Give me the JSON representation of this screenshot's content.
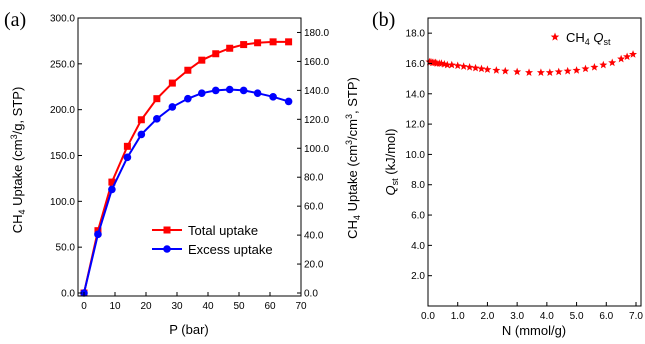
{
  "colors": {
    "red": "#ff0000",
    "blue": "#0000ff",
    "axis": "#000000"
  },
  "chart_data": [
    {
      "panel": "(a)",
      "type": "line",
      "xlabel": "P (bar)",
      "ylabel_left": "CH4 Uptake (cm3/g, STP)",
      "ylabel_right": "CH4 Uptake (cm3/cm3, STP)",
      "xlim": [
        0,
        70
      ],
      "ylim_left": [
        0,
        300
      ],
      "ylim_right": [
        0,
        190
      ],
      "xticks": [
        "0",
        "10",
        "20",
        "30",
        "40",
        "50",
        "60",
        "70"
      ],
      "yticks_left": [
        "0.0",
        "50.0",
        "100.0",
        "150.0",
        "200.0",
        "250.0",
        "300.0"
      ],
      "yticks_right": [
        "0.0",
        "20.0",
        "40.0",
        "60.0",
        "80.0",
        "100.0",
        "120.0",
        "140.0",
        "160.0",
        "180.0"
      ],
      "legend_position": "lower-right",
      "series": [
        {
          "name": "Total uptake",
          "color": "#ff0000",
          "marker": "square",
          "x": [
            0,
            4.5,
            9,
            14,
            18.5,
            23.5,
            28.5,
            33.5,
            38,
            42.5,
            47,
            51.5,
            56,
            61,
            66
          ],
          "y": [
            0,
            68,
            121,
            160,
            189,
            212,
            229,
            243,
            254,
            261,
            267,
            271,
            273,
            274,
            274
          ]
        },
        {
          "name": "Excess uptake",
          "color": "#0000ff",
          "marker": "circle",
          "x": [
            0,
            4.5,
            9,
            14,
            18.5,
            23.5,
            28.5,
            33.5,
            38,
            42.5,
            47,
            51.5,
            56,
            61,
            66
          ],
          "y": [
            0,
            64,
            113,
            148,
            173,
            190,
            203,
            212,
            218,
            221,
            222,
            221,
            218,
            214,
            209
          ]
        }
      ]
    },
    {
      "panel": "(b)",
      "type": "scatter",
      "xlabel": "N (mmol/g)",
      "ylabel": "Qst (kJ/mol)",
      "xlim": [
        0,
        7
      ],
      "ylim": [
        0,
        19
      ],
      "xticks": [
        "0.0",
        "1.0",
        "2.0",
        "3.0",
        "4.0",
        "5.0",
        "6.0",
        "7.0"
      ],
      "yticks": [
        "2.0",
        "4.0",
        "6.0",
        "8.0",
        "10.0",
        "12.0",
        "14.0",
        "16.0",
        "18.0"
      ],
      "legend_position": "top-right",
      "series": [
        {
          "name": "CH4 Qst",
          "color": "#ff0000",
          "marker": "star",
          "x": [
            0.05,
            0.1,
            0.15,
            0.2,
            0.25,
            0.3,
            0.38,
            0.45,
            0.55,
            0.65,
            0.8,
            1.0,
            1.2,
            1.4,
            1.6,
            1.8,
            2.0,
            2.3,
            2.6,
            3.0,
            3.4,
            3.8,
            4.1,
            4.4,
            4.7,
            5.0,
            5.3,
            5.6,
            5.9,
            6.2,
            6.5,
            6.7,
            6.9
          ],
          "y": [
            16.1,
            16.1,
            16.05,
            16.05,
            16.05,
            16.0,
            16.0,
            16.0,
            15.95,
            15.9,
            15.9,
            15.85,
            15.8,
            15.75,
            15.7,
            15.65,
            15.6,
            15.55,
            15.5,
            15.45,
            15.4,
            15.4,
            15.4,
            15.45,
            15.5,
            15.55,
            15.65,
            15.75,
            15.9,
            16.05,
            16.3,
            16.45,
            16.6
          ]
        }
      ]
    }
  ]
}
